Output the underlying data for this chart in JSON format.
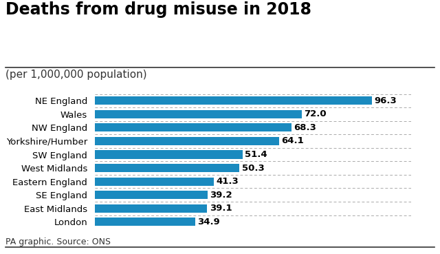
{
  "title": "Deaths from drug misuse in 2018",
  "subtitle": "(per 1,000,000 population)",
  "footer": "PA graphic. Source: ONS",
  "categories": [
    "London",
    "East Midlands",
    "SE England",
    "Eastern England",
    "West Midlands",
    "SW England",
    "Yorkshire/Humber",
    "NW England",
    "Wales",
    "NE England"
  ],
  "values": [
    34.9,
    39.1,
    39.2,
    41.3,
    50.3,
    51.4,
    64.1,
    68.3,
    72.0,
    96.3
  ],
  "bar_color": "#1a8abf",
  "label_color": "#000000",
  "title_color": "#000000",
  "subtitle_color": "#333333",
  "footer_color": "#333333",
  "background_color": "#ffffff",
  "xlim": [
    0,
    110
  ],
  "bar_height": 0.62,
  "title_fontsize": 17,
  "subtitle_fontsize": 11,
  "label_fontsize": 9.5,
  "category_fontsize": 9.5,
  "footer_fontsize": 9
}
